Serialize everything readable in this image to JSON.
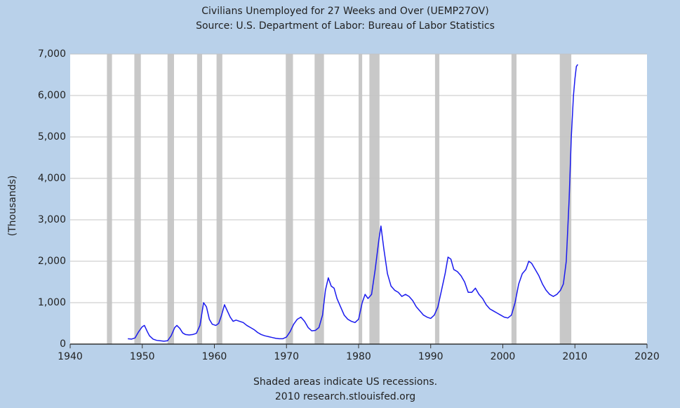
{
  "chart_data": {
    "type": "line",
    "title": "Civilians Unemployed for 27 Weeks and Over (UEMP27OV)",
    "subtitle": "Source: U.S. Department of Labor: Bureau of Labor Statistics",
    "y_label": "(Thousands)",
    "notes": [
      "Shaded areas indicate US recessions.",
      "2010 research.stlouisfed.org"
    ],
    "color": "#1a1aee",
    "recession_color": "#c8c8c8",
    "grid": true,
    "xlim": [
      1940,
      2020
    ],
    "xticks": [
      1940,
      1950,
      1960,
      1970,
      1980,
      1990,
      2000,
      2010,
      2020
    ],
    "ylim": [
      0,
      7000
    ],
    "yticks": [
      0,
      {
        "value": 1000,
        "label": "1,000"
      },
      {
        "value": 2000,
        "label": "2,000"
      },
      {
        "value": 3000,
        "label": "3,000"
      },
      {
        "value": 4000,
        "label": "4,000"
      },
      {
        "value": 5000,
        "label": "5,000"
      },
      {
        "value": 6000,
        "label": "6,000"
      },
      {
        "value": 7000,
        "label": "7,000"
      }
    ],
    "recessions": [
      [
        1945.1,
        1945.8
      ],
      [
        1948.9,
        1949.8
      ],
      [
        1953.5,
        1954.4
      ],
      [
        1957.6,
        1958.3
      ],
      [
        1960.3,
        1961.1
      ],
      [
        1969.9,
        1970.9
      ],
      [
        1973.9,
        1975.2
      ],
      [
        1980.0,
        1980.5
      ],
      [
        1981.5,
        1982.9
      ],
      [
        1990.6,
        1991.2
      ],
      [
        2001.2,
        2001.9
      ],
      [
        2007.9,
        2009.5
      ]
    ],
    "x": [
      1948.0,
      1948.5,
      1949.0,
      1949.5,
      1950.0,
      1950.3,
      1950.7,
      1951.0,
      1951.5,
      1952.0,
      1952.5,
      1953.0,
      1953.5,
      1954.0,
      1954.5,
      1954.8,
      1955.2,
      1955.6,
      1956.0,
      1956.5,
      1957.0,
      1957.5,
      1958.0,
      1958.5,
      1958.9,
      1959.3,
      1959.7,
      1960.2,
      1960.6,
      1961.0,
      1961.4,
      1961.8,
      1962.2,
      1962.6,
      1963.0,
      1963.5,
      1964.0,
      1964.5,
      1965.0,
      1965.5,
      1966.0,
      1966.5,
      1967.0,
      1967.5,
      1968.0,
      1968.5,
      1969.0,
      1969.5,
      1970.0,
      1970.5,
      1971.0,
      1971.5,
      1972.0,
      1972.5,
      1973.0,
      1973.5,
      1974.0,
      1974.5,
      1975.0,
      1975.4,
      1975.8,
      1976.2,
      1976.6,
      1977.0,
      1977.5,
      1978.0,
      1978.5,
      1979.0,
      1979.5,
      1980.0,
      1980.5,
      1980.9,
      1981.3,
      1981.8,
      1982.3,
      1982.8,
      1983.1,
      1983.5,
      1984.0,
      1984.5,
      1985.0,
      1985.5,
      1986.0,
      1986.5,
      1987.0,
      1987.5,
      1988.0,
      1988.5,
      1989.0,
      1989.5,
      1990.0,
      1990.5,
      1991.0,
      1991.5,
      1992.0,
      1992.4,
      1992.8,
      1993.2,
      1993.7,
      1994.2,
      1994.7,
      1995.2,
      1995.7,
      1996.2,
      1996.7,
      1997.2,
      1997.7,
      1998.2,
      1998.7,
      1999.2,
      1999.7,
      2000.2,
      2000.7,
      2001.2,
      2001.7,
      2002.2,
      2002.7,
      2003.2,
      2003.6,
      2004.0,
      2004.5,
      2005.0,
      2005.5,
      2006.0,
      2006.5,
      2007.0,
      2007.5,
      2008.0,
      2008.4,
      2008.8,
      2009.2,
      2009.5,
      2009.8,
      2010.0,
      2010.2,
      2010.4
    ],
    "values": [
      130,
      120,
      150,
      300,
      420,
      450,
      300,
      200,
      120,
      90,
      80,
      70,
      80,
      200,
      400,
      450,
      380,
      270,
      230,
      220,
      230,
      260,
      450,
      1000,
      900,
      600,
      480,
      450,
      500,
      700,
      950,
      800,
      650,
      550,
      580,
      550,
      520,
      450,
      400,
      350,
      280,
      230,
      200,
      180,
      160,
      140,
      130,
      130,
      170,
      300,
      480,
      600,
      650,
      550,
      400,
      320,
      330,
      400,
      700,
      1300,
      1600,
      1400,
      1350,
      1100,
      900,
      700,
      600,
      550,
      520,
      600,
      1000,
      1200,
      1100,
      1200,
      1800,
      2500,
      2850,
      2300,
      1700,
      1400,
      1300,
      1250,
      1150,
      1200,
      1150,
      1050,
      900,
      800,
      700,
      650,
      620,
      700,
      900,
      1300,
      1700,
      2100,
      2050,
      1800,
      1750,
      1650,
      1500,
      1250,
      1250,
      1350,
      1200,
      1100,
      950,
      850,
      800,
      750,
      700,
      650,
      630,
      700,
      1000,
      1450,
      1700,
      1800,
      2000,
      1950,
      1800,
      1650,
      1450,
      1300,
      1200,
      1150,
      1200,
      1300,
      1450,
      2000,
      3500,
      5000,
      6000,
      6400,
      6700,
      6750
    ]
  }
}
